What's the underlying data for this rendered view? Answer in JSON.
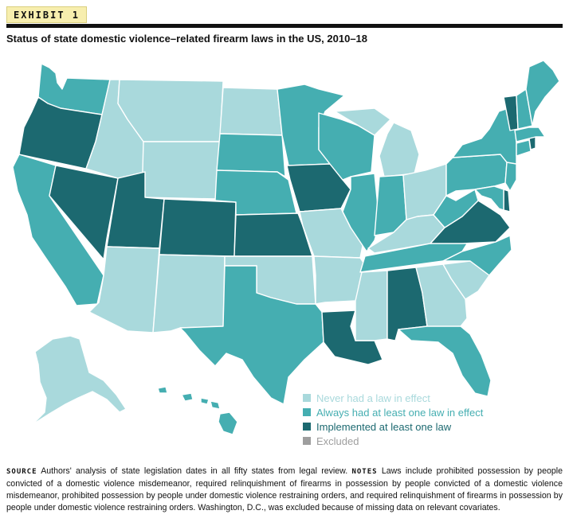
{
  "exhibit_label": "EXHIBIT 1",
  "title": "Status of state domestic violence–related firearm laws in the US, 2010–18",
  "colors": {
    "never": "#a9d9dc",
    "always": "#45aeb1",
    "implemented": "#1c6970",
    "excluded": "#9e9e9e"
  },
  "legend": [
    {
      "key": "never",
      "label": "Never had a law in effect"
    },
    {
      "key": "always",
      "label": "Always had at least one law in effect"
    },
    {
      "key": "implemented",
      "label": "Implemented at least one law"
    },
    {
      "key": "excluded",
      "label": "Excluded"
    }
  ],
  "states": {
    "WA": "always",
    "OR": "implemented",
    "CA": "always",
    "NV": "implemented",
    "ID": "never",
    "MT": "never",
    "WY": "never",
    "UT": "implemented",
    "AZ": "never",
    "CO": "implemented",
    "NM": "never",
    "ND": "never",
    "SD": "always",
    "NE": "always",
    "KS": "implemented",
    "OK": "never",
    "TX": "always",
    "MN": "always",
    "IA": "implemented",
    "MO": "never",
    "AR": "never",
    "LA": "implemented",
    "WI": "always",
    "IL": "always",
    "MI": "never",
    "IN": "always",
    "OH": "never",
    "KY": "never",
    "TN": "always",
    "MS": "never",
    "AL": "implemented",
    "GA": "never",
    "FL": "always",
    "SC": "never",
    "NC": "always",
    "VA": "implemented",
    "WV": "always",
    "PA": "always",
    "NY": "always",
    "VT": "implemented",
    "NH": "always",
    "ME": "always",
    "MA": "always",
    "RI": "implemented",
    "CT": "always",
    "NJ": "always",
    "DE": "implemented",
    "MD": "always",
    "AK": "never",
    "HI": "always"
  },
  "notes": {
    "source_label": "Source",
    "source_text": "Authors' analysis of state legislation dates in all fifty states from legal review.",
    "notes_label": "Notes",
    "notes_text": "Laws include prohibited possession by people convicted of a domestic violence misdemeanor, required relinquishment of firearms in possession by people convicted of a domestic violence misdemeanor, prohibited possession by people under domestic violence restraining orders, and required relinquishment of firearms in possession by people under domestic violence restraining orders. Washington, D.C., was excluded because of missing data on relevant covariates."
  }
}
